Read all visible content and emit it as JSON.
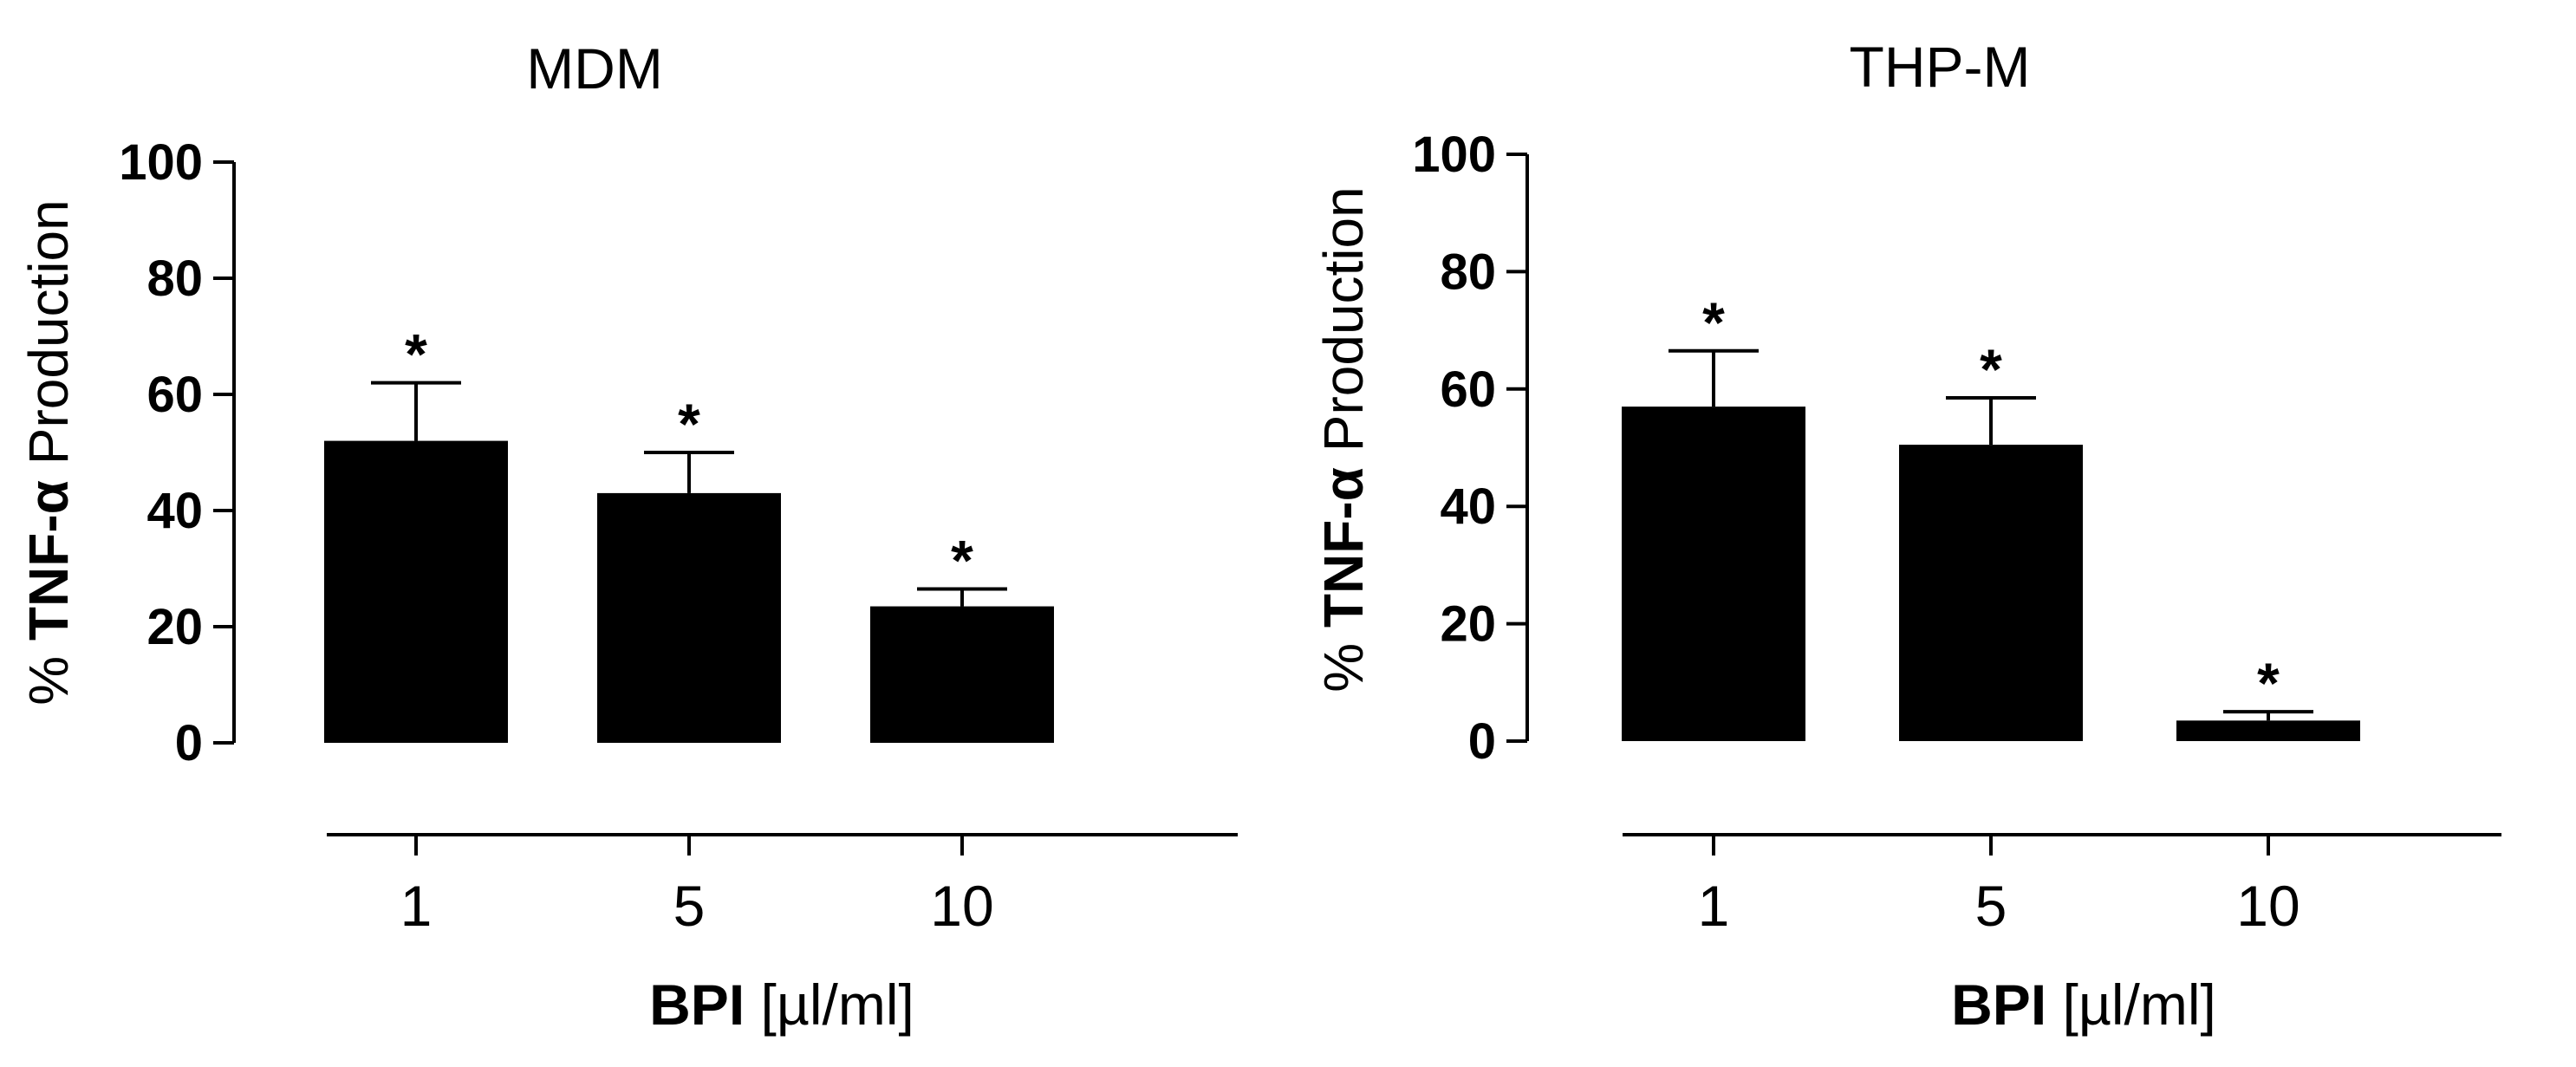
{
  "chart_data": [
    {
      "type": "bar",
      "title": "MDM",
      "categories": [
        "1",
        "5",
        "10"
      ],
      "values": [
        52,
        43,
        23.5
      ],
      "errors": [
        10,
        7,
        3
      ],
      "annotations": [
        "*",
        "*",
        "*"
      ],
      "ylabel_prefix": "%",
      "ylabel_bold": "TNF-α",
      "ylabel_rest": "Production",
      "xlabel_bold": "BPI",
      "xlabel_rest": "[µl/ml]",
      "ylim": [
        0,
        100
      ],
      "yticks": [
        "0",
        "20",
        "40",
        "60",
        "80",
        "100"
      ],
      "grid": false,
      "bar_color": "#000000"
    },
    {
      "type": "bar",
      "title": "THP-M",
      "categories": [
        "1",
        "5",
        "10"
      ],
      "values": [
        57,
        50.5,
        3.5
      ],
      "errors": [
        9.5,
        8,
        1.5
      ],
      "annotations": [
        "*",
        "*",
        "*"
      ],
      "ylabel_prefix": "%",
      "ylabel_bold": "TNF-α",
      "ylabel_rest": "Production",
      "xlabel_bold": "BPI",
      "xlabel_rest": "[µl/ml]",
      "ylim": [
        0,
        100
      ],
      "yticks": [
        "0",
        "20",
        "40",
        "60",
        "80",
        "100"
      ],
      "grid": false,
      "bar_color": "#000000"
    }
  ]
}
